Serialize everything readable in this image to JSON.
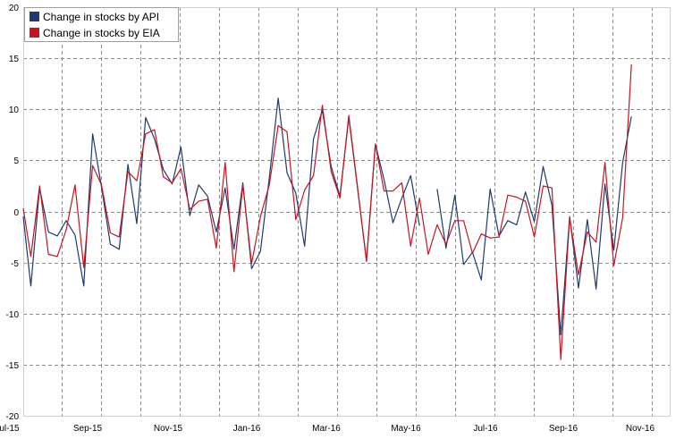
{
  "chart_data": {
    "type": "line",
    "title": "",
    "xlabel": "",
    "ylabel": "",
    "ylim": [
      -20,
      20
    ],
    "y_ticks": [
      -20,
      -15,
      -10,
      -5,
      0,
      5,
      10,
      15,
      20
    ],
    "x_tick_labels": [
      "Jul-15",
      "Sep-15",
      "Nov-15",
      "Jan-16",
      "Mar-16",
      "May-16",
      "Jul-16",
      "Sep-16",
      "Nov-16"
    ],
    "grid": true,
    "legend_placement": "top-left",
    "x_start": "2015-07-01",
    "x_end": "2016-11-25",
    "series": [
      {
        "name": "Change in stocks by API",
        "color": "#1f3a6e",
        "points": [
          [
            "2015-07-01",
            -0.5
          ],
          [
            "2015-07-07",
            -7.3
          ],
          [
            "2015-07-14",
            2.3
          ],
          [
            "2015-07-21",
            -2.0
          ],
          [
            "2015-07-28",
            -2.4
          ],
          [
            "2015-08-04",
            -0.9
          ],
          [
            "2015-08-11",
            -2.3
          ],
          [
            "2015-08-18",
            -7.3
          ],
          [
            "2015-08-25",
            7.6
          ],
          [
            "2015-09-01",
            2.4
          ],
          [
            "2015-09-08",
            -3.2
          ],
          [
            "2015-09-15",
            -3.7
          ],
          [
            "2015-09-22",
            4.6
          ],
          [
            "2015-09-29",
            -1.2
          ],
          [
            "2015-10-06",
            9.2
          ],
          [
            "2015-10-13",
            7.1
          ],
          [
            "2015-10-20",
            4.1
          ],
          [
            "2015-10-27",
            2.7
          ],
          [
            "2015-11-03",
            6.3
          ],
          [
            "2015-11-10",
            -0.4
          ],
          [
            "2015-11-17",
            2.6
          ],
          [
            "2015-11-24",
            1.5
          ],
          [
            "2015-12-01",
            -2.0
          ],
          [
            "2015-12-08",
            2.3
          ],
          [
            "2015-12-15",
            -3.7
          ],
          [
            "2015-12-22",
            2.8
          ],
          [
            "2015-12-29",
            -5.6
          ],
          [
            "2016-01-05",
            -3.9
          ],
          [
            "2016-01-12",
            3.3
          ],
          [
            "2016-01-19",
            11.1
          ],
          [
            "2016-01-26",
            3.8
          ],
          [
            "2016-02-02",
            1.8
          ],
          [
            "2016-02-09",
            -3.4
          ],
          [
            "2016-02-16",
            7.1
          ],
          [
            "2016-02-23",
            9.9
          ],
          [
            "2016-03-01",
            4.4
          ],
          [
            "2016-03-08",
            1.5
          ],
          [
            "2016-03-15",
            9.2
          ],
          [
            "2016-03-22",
            2.2
          ],
          [
            "2016-03-29",
            -4.8
          ],
          [
            "2016-04-05",
            6.6
          ],
          [
            "2016-04-12",
            3.1
          ],
          [
            "2016-04-19",
            -1.1
          ],
          [
            "2016-04-26",
            1.3
          ],
          [
            "2016-05-03",
            3.5
          ],
          [
            "2016-05-10",
            -1.4
          ],
          [
            "2016-05-17",
            null
          ],
          [
            "2016-05-24",
            2.2
          ],
          [
            "2016-05-31",
            -3.6
          ],
          [
            "2016-06-07",
            1.6
          ],
          [
            "2016-06-14",
            -5.2
          ],
          [
            "2016-06-21",
            -4.0
          ],
          [
            "2016-06-28",
            -6.7
          ],
          [
            "2016-07-05",
            2.2
          ],
          [
            "2016-07-12",
            -2.4
          ],
          [
            "2016-07-19",
            -0.9
          ],
          [
            "2016-07-26",
            -1.3
          ],
          [
            "2016-08-02",
            1.9
          ],
          [
            "2016-08-09",
            -1.0
          ],
          [
            "2016-08-16",
            4.4
          ],
          [
            "2016-08-23",
            0.6
          ],
          [
            "2016-08-30",
            -12.1
          ],
          [
            "2016-09-06",
            -0.5
          ],
          [
            "2016-09-13",
            -7.5
          ],
          [
            "2016-09-20",
            -0.8
          ],
          [
            "2016-09-27",
            -7.6
          ],
          [
            "2016-10-04",
            2.7
          ],
          [
            "2016-10-11",
            -3.8
          ],
          [
            "2016-10-18",
            4.8
          ],
          [
            "2016-10-25",
            9.3
          ]
        ]
      },
      {
        "name": "Change in stocks by EIA",
        "color": "#c8141e",
        "points": [
          [
            "2015-07-01",
            0.3
          ],
          [
            "2015-07-07",
            -4.4
          ],
          [
            "2015-07-14",
            2.5
          ],
          [
            "2015-07-21",
            -4.2
          ],
          [
            "2015-07-28",
            -4.4
          ],
          [
            "2015-08-04",
            -1.8
          ],
          [
            "2015-08-11",
            2.6
          ],
          [
            "2015-08-18",
            -5.5
          ],
          [
            "2015-08-25",
            4.5
          ],
          [
            "2015-09-01",
            2.6
          ],
          [
            "2015-09-08",
            -2.1
          ],
          [
            "2015-09-15",
            -2.5
          ],
          [
            "2015-09-22",
            3.9
          ],
          [
            "2015-09-29",
            3.0
          ],
          [
            "2015-10-06",
            7.6
          ],
          [
            "2015-10-13",
            8.0
          ],
          [
            "2015-10-20",
            3.4
          ],
          [
            "2015-10-27",
            2.8
          ],
          [
            "2015-11-03",
            4.2
          ],
          [
            "2015-11-10",
            0.2
          ],
          [
            "2015-11-17",
            1.0
          ],
          [
            "2015-11-24",
            1.2
          ],
          [
            "2015-12-01",
            -3.6
          ],
          [
            "2015-12-08",
            4.8
          ],
          [
            "2015-12-15",
            -5.9
          ],
          [
            "2015-12-22",
            2.6
          ],
          [
            "2015-12-29",
            -5.1
          ],
          [
            "2016-01-05",
            -0.5
          ],
          [
            "2016-01-12",
            2.6
          ],
          [
            "2016-01-19",
            8.4
          ],
          [
            "2016-01-26",
            7.8
          ],
          [
            "2016-02-02",
            -0.8
          ],
          [
            "2016-02-09",
            2.1
          ],
          [
            "2016-02-16",
            3.5
          ],
          [
            "2016-02-23",
            10.4
          ],
          [
            "2016-03-01",
            3.9
          ],
          [
            "2016-03-08",
            1.3
          ],
          [
            "2016-03-15",
            9.4
          ],
          [
            "2016-03-22",
            2.3
          ],
          [
            "2016-03-29",
            -4.9
          ],
          [
            "2016-04-05",
            6.6
          ],
          [
            "2016-04-12",
            2.0
          ],
          [
            "2016-04-19",
            2.0
          ],
          [
            "2016-04-26",
            2.8
          ],
          [
            "2016-05-03",
            -3.4
          ],
          [
            "2016-05-10",
            1.3
          ],
          [
            "2016-05-17",
            -4.2
          ],
          [
            "2016-05-24",
            -1.3
          ],
          [
            "2016-05-31",
            -3.2
          ],
          [
            "2016-06-07",
            -0.9
          ],
          [
            "2016-06-14",
            -0.9
          ],
          [
            "2016-06-21",
            -4.1
          ],
          [
            "2016-06-28",
            -2.2
          ],
          [
            "2016-07-05",
            -2.6
          ],
          [
            "2016-07-12",
            -2.5
          ],
          [
            "2016-07-19",
            1.6
          ],
          [
            "2016-07-26",
            1.4
          ],
          [
            "2016-08-02",
            1.0
          ],
          [
            "2016-08-09",
            -2.5
          ],
          [
            "2016-08-16",
            2.5
          ],
          [
            "2016-08-23",
            2.3
          ],
          [
            "2016-08-30",
            -14.5
          ],
          [
            "2016-09-06",
            -0.6
          ],
          [
            "2016-09-13",
            -6.2
          ],
          [
            "2016-09-20",
            -2.0
          ],
          [
            "2016-09-27",
            -3.0
          ],
          [
            "2016-10-04",
            4.8
          ],
          [
            "2016-10-11",
            -5.3
          ],
          [
            "2016-10-18",
            -0.6
          ],
          [
            "2016-10-25",
            14.4
          ]
        ]
      }
    ]
  }
}
